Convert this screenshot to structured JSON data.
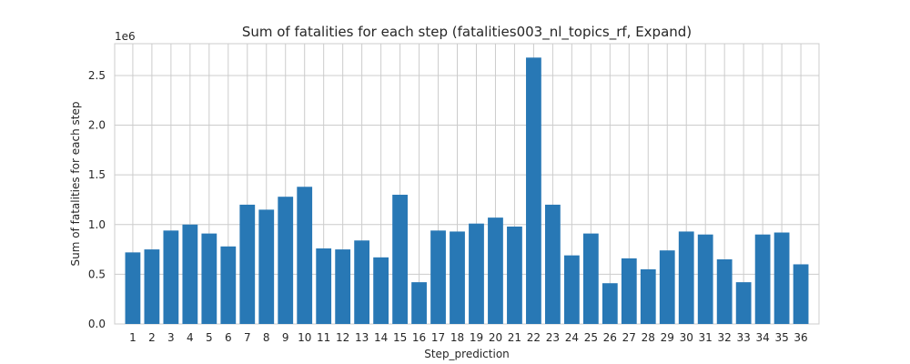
{
  "chart_data": {
    "type": "bar",
    "title": "Sum of fatalities for each step (fatalities003_nl_topics_rf, Expand)",
    "xlabel": "Step_prediction",
    "ylabel": "Sum of fatalities for each step",
    "y_scale_label": "1e6",
    "y_multiplier": 1000000,
    "ylim": [
      0,
      2.82
    ],
    "yticks": [
      0.0,
      0.5,
      1.0,
      1.5,
      2.0,
      2.5
    ],
    "ytick_labels": [
      "0.0",
      "0.5",
      "1.0",
      "1.5",
      "2.0",
      "2.5"
    ],
    "grid": true,
    "bar_color": "#2878b5",
    "categories": [
      "1",
      "2",
      "3",
      "4",
      "5",
      "6",
      "7",
      "8",
      "9",
      "10",
      "11",
      "12",
      "13",
      "14",
      "15",
      "16",
      "17",
      "18",
      "19",
      "20",
      "21",
      "22",
      "23",
      "24",
      "25",
      "26",
      "27",
      "28",
      "29",
      "30",
      "31",
      "32",
      "33",
      "34",
      "35",
      "36"
    ],
    "values": [
      0.72,
      0.75,
      0.94,
      1.0,
      0.91,
      0.78,
      1.2,
      1.15,
      1.28,
      1.38,
      0.76,
      0.75,
      0.84,
      0.67,
      1.3,
      0.42,
      0.94,
      0.93,
      1.01,
      1.07,
      0.98,
      2.68,
      1.2,
      0.69,
      0.91,
      0.41,
      0.66,
      0.55,
      0.74,
      0.93,
      0.9,
      0.65,
      0.42,
      0.9,
      0.92,
      0.6
    ]
  }
}
